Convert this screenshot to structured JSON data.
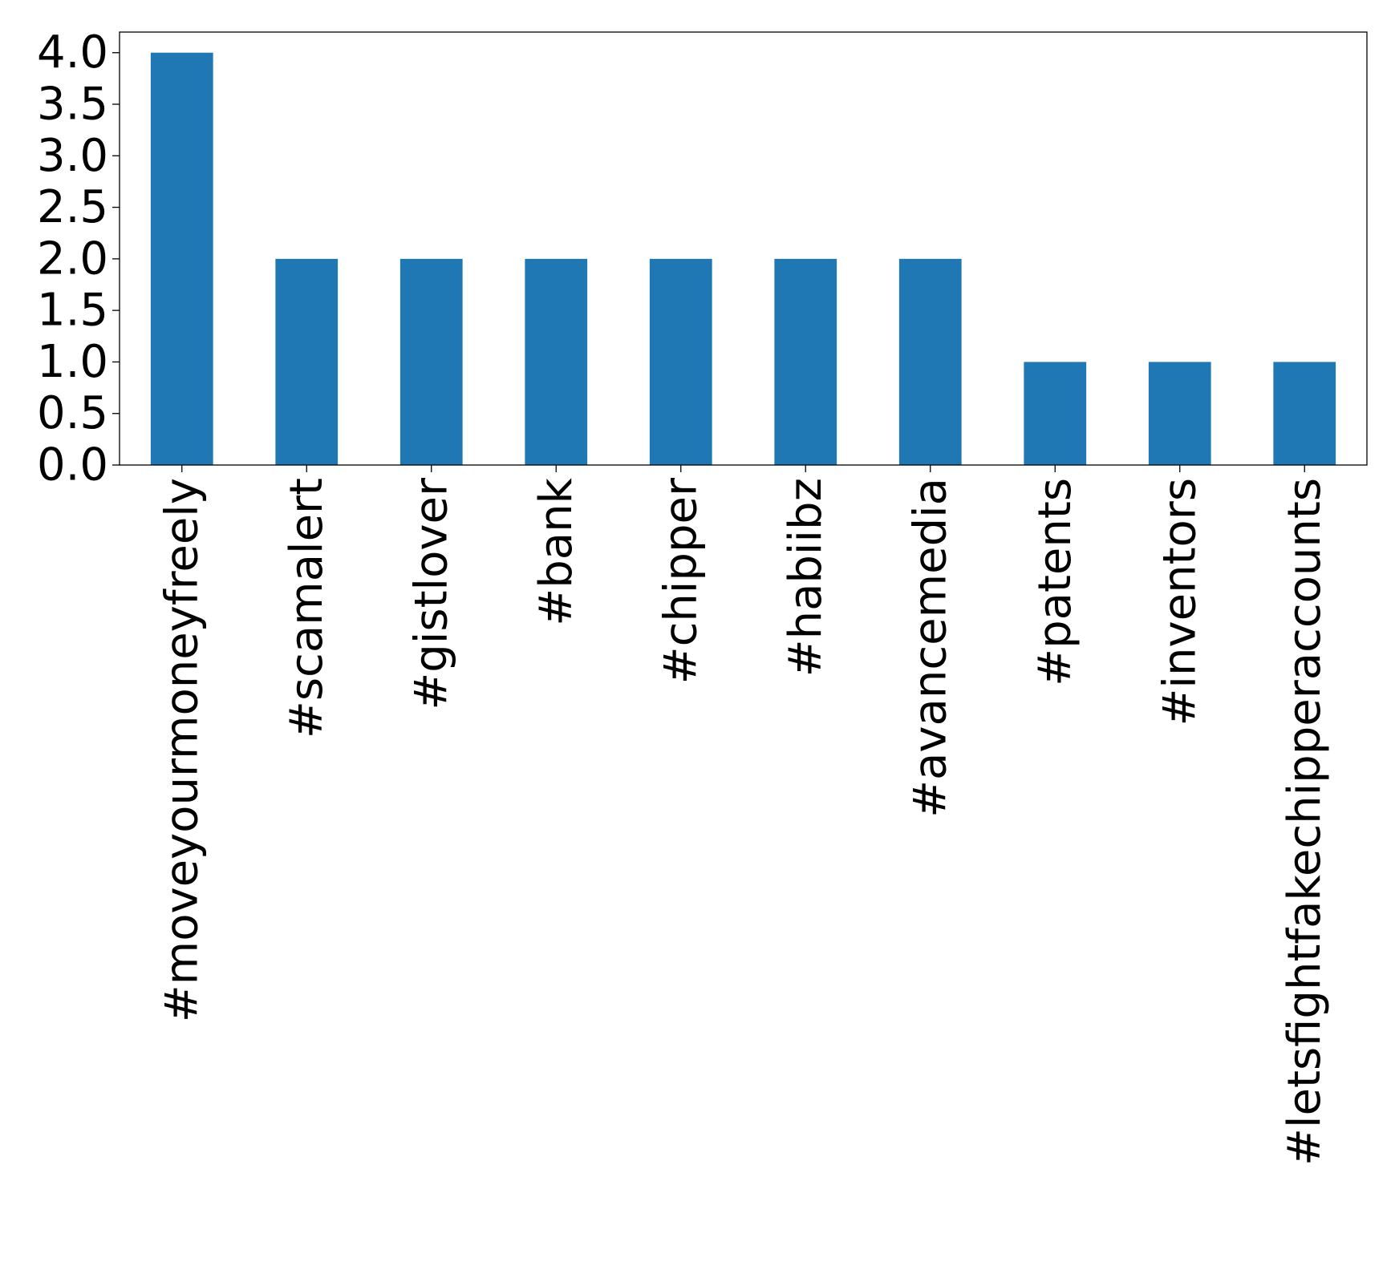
{
  "chart_data": {
    "type": "bar",
    "title": "",
    "xlabel": "",
    "ylabel": "",
    "categories": [
      "#moveyourmoneyfreely",
      "#scamalert",
      "#gistlover",
      "#bank",
      "#chipper",
      "#habiibz",
      "#avancemedia",
      "#patents",
      "#inventors",
      "#letsfightfakechipperaccounts"
    ],
    "values": [
      4,
      2,
      2,
      2,
      2,
      2,
      2,
      1,
      1,
      1
    ],
    "ylim": [
      0,
      4.2
    ],
    "yticks": [
      "0.0",
      "0.5",
      "1.0",
      "1.5",
      "2.0",
      "2.5",
      "3.0",
      "3.5",
      "4.0"
    ],
    "bar_color": "#1f77b4",
    "grid": false,
    "legend": "none"
  }
}
